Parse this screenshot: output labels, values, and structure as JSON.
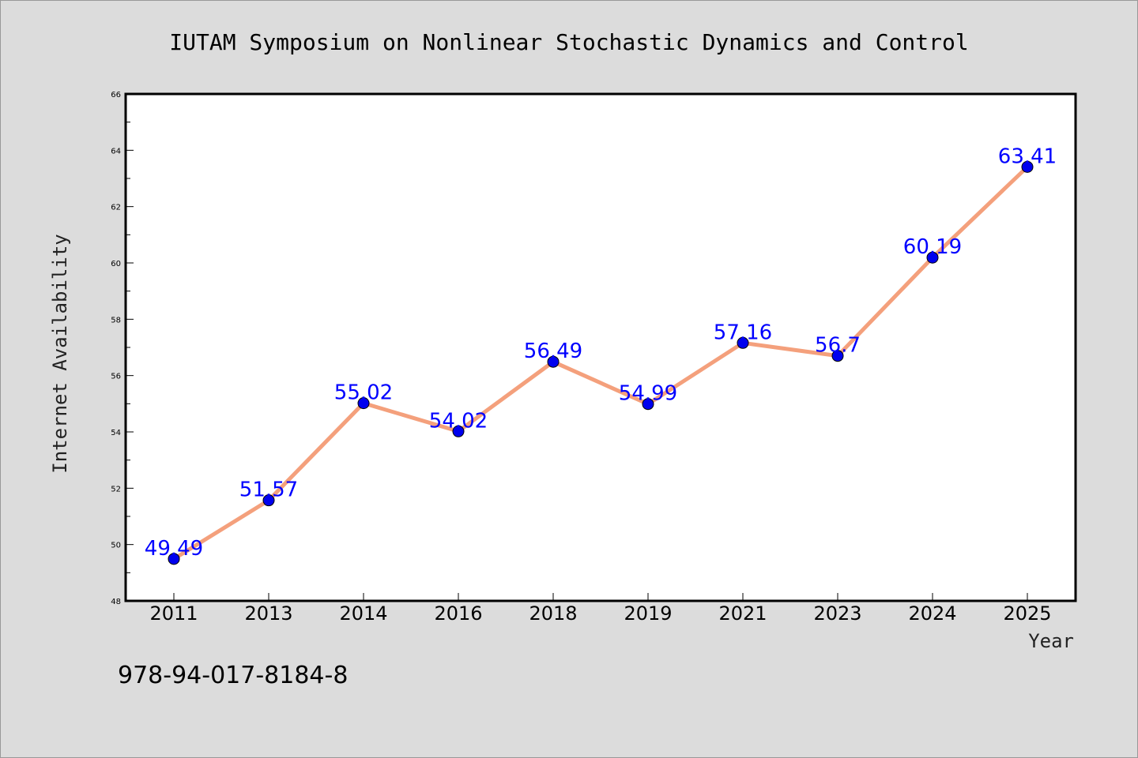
{
  "chart_data": {
    "type": "line",
    "title": "IUTAM Symposium on Nonlinear Stochastic Dynamics and Control",
    "xlabel": "Year",
    "ylabel": "Internet Availability",
    "categories": [
      "2011",
      "2013",
      "2014",
      "2016",
      "2018",
      "2019",
      "2021",
      "2023",
      "2024",
      "2025"
    ],
    "values": [
      49.49,
      51.57,
      55.02,
      54.02,
      56.49,
      54.99,
      57.16,
      56.7,
      60.19,
      63.41
    ],
    "data_labels": [
      "49.49",
      "51.57",
      "55.02",
      "54.02",
      "56.49",
      "54.99",
      "57.16",
      "56.7",
      "60.19",
      "63.41"
    ],
    "ylim": [
      48,
      66
    ],
    "yticks": [
      "48",
      "50",
      "52",
      "54",
      "56",
      "58",
      "60",
      "62",
      "64",
      "66"
    ],
    "grid": false,
    "legend": "none",
    "colors": {
      "line": "#f4a07c",
      "marker": "#0000ee",
      "data_label": "#0000ff",
      "background": "#dcdcdc",
      "plot_background": "#ffffff"
    }
  },
  "footer_text": "978-94-017-8184-8"
}
